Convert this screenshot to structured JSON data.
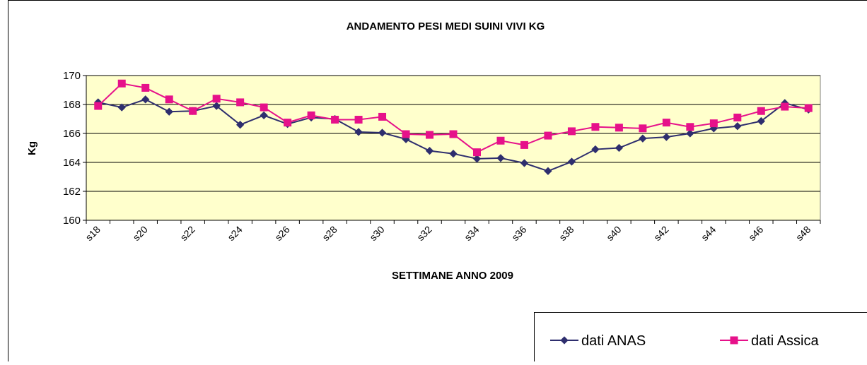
{
  "chart_data": {
    "type": "line",
    "title": "ANDAMENTO PESI MEDI SUINI VIVI  KG",
    "x_label": "SETTIMANE ANNO 2009",
    "y_label": "Kg",
    "categories": [
      "s18",
      null,
      "s20",
      null,
      "s22",
      null,
      "s24",
      null,
      "s26",
      null,
      "s28",
      null,
      "s30",
      null,
      "s32",
      null,
      "s34",
      null,
      "s36",
      null,
      "s38",
      null,
      "s40",
      null,
      "s42",
      null,
      "s44",
      null,
      "s46",
      null,
      "s48"
    ],
    "series": [
      {
        "name": "dati ANAS",
        "color": "#2e2e6e",
        "marker": "diamond",
        "values": [
          168.15,
          167.8,
          168.35,
          167.5,
          167.55,
          167.9,
          166.6,
          167.25,
          166.65,
          167.1,
          167.0,
          166.1,
          166.05,
          165.6,
          164.8,
          164.6,
          164.25,
          164.3,
          163.95,
          163.4,
          164.05,
          164.9,
          165.0,
          165.65,
          165.75,
          166.0,
          166.35,
          166.5,
          166.85,
          168.1,
          167.65
        ]
      },
      {
        "name": "dati Assica",
        "color": "#e6118a",
        "marker": "square",
        "values": [
          167.9,
          169.45,
          169.15,
          168.35,
          167.55,
          168.4,
          168.15,
          167.8,
          166.75,
          167.25,
          166.95,
          166.95,
          167.15,
          165.95,
          165.9,
          165.95,
          164.7,
          165.5,
          165.2,
          165.85,
          166.15,
          166.45,
          166.4,
          166.35,
          166.75,
          166.45,
          166.7,
          167.1,
          167.55,
          167.85,
          167.75
        ]
      }
    ],
    "ylim": [
      160,
      170
    ],
    "yticks": [
      160,
      162,
      164,
      166,
      168,
      170
    ],
    "grid": true,
    "plot_background": "#ffffcc",
    "legend": "bottom-right"
  }
}
